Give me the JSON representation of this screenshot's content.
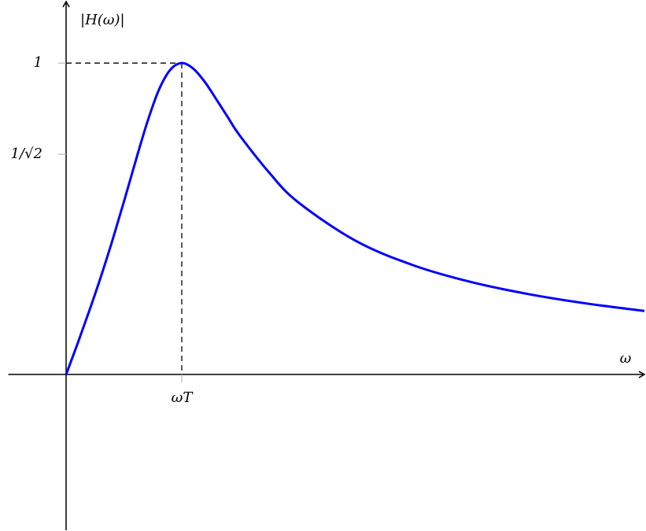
{
  "chart_data": {
    "type": "line",
    "x_label": "ω",
    "y_label": "|H(ω)|",
    "x": [
      0,
      0.1,
      0.2,
      0.3,
      0.4,
      0.5,
      0.6,
      0.7,
      0.8,
      0.9,
      1,
      1.1,
      1.2,
      1.3,
      1.4,
      1.5,
      1.75,
      2,
      2.5,
      3,
      3.5,
      4,
      4.5,
      5
    ],
    "values": [
      0,
      0.1,
      0.204,
      0.313,
      0.43,
      0.555,
      0.684,
      0.808,
      0.912,
      0.978,
      1,
      0.982,
      0.939,
      0.883,
      0.825,
      0.768,
      0.651,
      0.555,
      0.43,
      0.351,
      0.297,
      0.258,
      0.228,
      0.204
    ],
    "color": "#0000ff",
    "xlim": [
      -0.5,
      5
    ],
    "ylim": [
      -0.5,
      1.2
    ],
    "xticks": [
      {
        "value": 1,
        "label": "ωT"
      }
    ],
    "yticks": [
      {
        "value": 0.7071,
        "label": "1/√2"
      },
      1
    ]
  }
}
